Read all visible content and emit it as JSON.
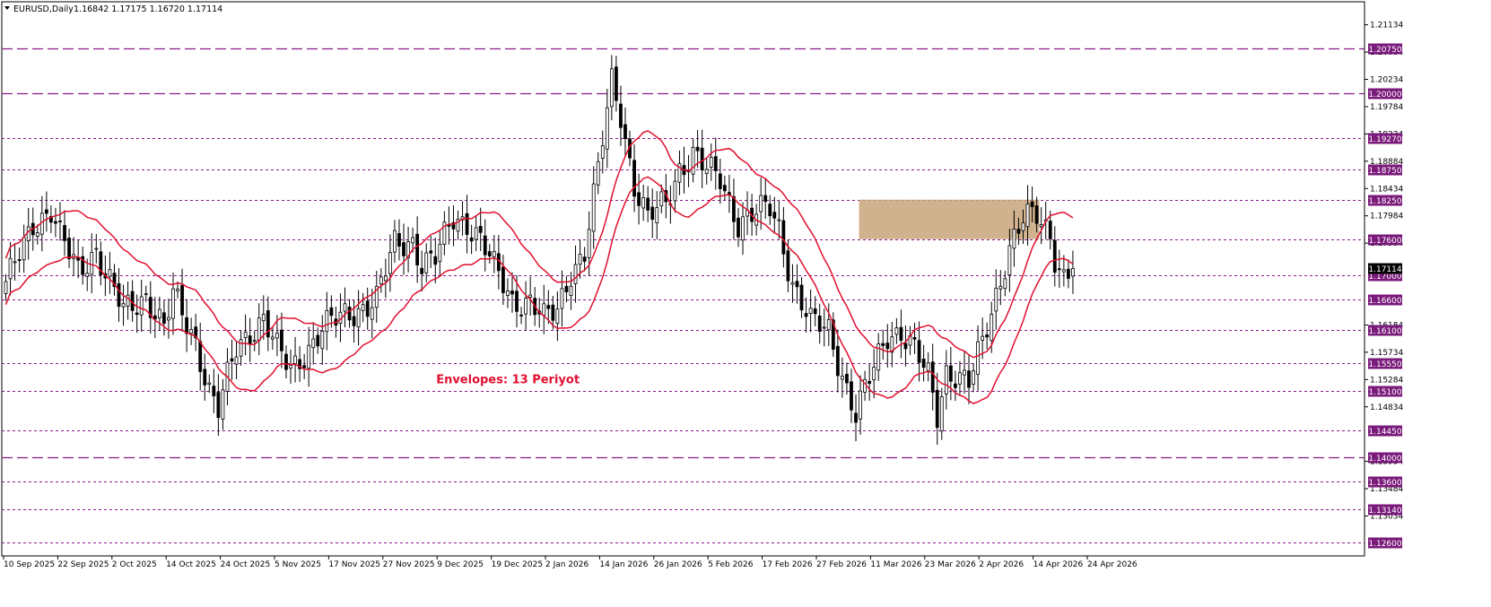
{
  "header": {
    "symbol": "EURUSD,Daily",
    "ohlc": "1.16842 1.17175 1.16720 1.17114"
  },
  "colors": {
    "background": "#ffffff",
    "candle_bull": "#ffffff",
    "candle_bear": "#000000",
    "candle_outline": "#000000",
    "envelope": "#e01030",
    "level_line": "#8a1a8a",
    "level_label_bg": "#7a1a7a",
    "zone_fill": "#c8a57a",
    "annotation": "#e01030",
    "price_label_bg": "#000000"
  },
  "chart_data": {
    "type": "candlestick",
    "symbol": "EURUSD",
    "timeframe": "Daily",
    "ylim": [
      1.1245,
      1.2145
    ],
    "y_ticks": [
      "1.21134",
      "1.20684",
      "1.20234",
      "1.19784",
      "1.19334",
      "1.18884",
      "1.18434",
      "1.17984",
      "1.17534",
      "1.16184",
      "1.15734",
      "1.15284",
      "1.14834",
      "1.13934",
      "1.13484",
      "1.13034"
    ],
    "x_tick_labels": [
      "10 Sep 2025",
      "22 Sep 2025",
      "2 Oct 2025",
      "14 Oct 2025",
      "24 Oct 2025",
      "5 Nov 2025",
      "17 Nov 2025",
      "27 Nov 2025",
      "9 Dec 2025",
      "19 Dec 2025",
      "2 Jan 2026",
      "14 Jan 2026",
      "26 Jan 2026",
      "5 Feb 2026",
      "17 Feb 2026",
      "27 Feb 2026",
      "11 Mar 2026",
      "23 Mar 2026",
      "2 Apr 2026",
      "14 Apr 2026",
      "24 Apr 2026"
    ],
    "levels": [
      {
        "label": "1.20750",
        "value": 1.2075,
        "style": "long-dash"
      },
      {
        "label": "1.20000",
        "value": 1.2,
        "style": "long-dash"
      },
      {
        "label": "1.19270",
        "value": 1.1927,
        "style": "dash"
      },
      {
        "label": "1.18750",
        "value": 1.1875,
        "style": "dash"
      },
      {
        "label": "1.18250",
        "value": 1.1825,
        "style": "dash"
      },
      {
        "label": "1.17600",
        "value": 1.176,
        "style": "dash"
      },
      {
        "label": "1.17000",
        "value": 1.17,
        "style": "dash"
      },
      {
        "label": "1.16600",
        "value": 1.166,
        "style": "dash"
      },
      {
        "label": "1.16100",
        "value": 1.161,
        "style": "dash"
      },
      {
        "label": "1.15550",
        "value": 1.1555,
        "style": "dash"
      },
      {
        "label": "1.15100",
        "value": 1.151,
        "style": "dash"
      },
      {
        "label": "1.14450",
        "value": 1.1445,
        "style": "dash"
      },
      {
        "label": "1.14000",
        "value": 1.14,
        "style": "long-dash"
      },
      {
        "label": "1.13600",
        "value": 1.136,
        "style": "dash"
      },
      {
        "label": "1.13140",
        "value": 1.1314,
        "style": "dash"
      },
      {
        "label": "1.12600",
        "value": 1.126,
        "style": "dash"
      }
    ],
    "current_price_label": "1.17114",
    "current_price": 1.17114,
    "zone": {
      "bar_from": 189,
      "bar_to": 213,
      "high": 1.1825,
      "low": 1.176
    },
    "annotation": {
      "text": "Envelopes: 13 Periyot",
      "bar": 103,
      "value": 1.1525
    },
    "envelope_period": 13,
    "envelope_shift": 0.0038,
    "key_closes": [
      [
        0,
        1.168
      ],
      [
        6,
        1.179
      ],
      [
        10,
        1.1805
      ],
      [
        12,
        1.176
      ],
      [
        16,
        1.171
      ],
      [
        20,
        1.1745
      ],
      [
        22,
        1.17
      ],
      [
        26,
        1.164
      ],
      [
        31,
        1.167
      ],
      [
        35,
        1.161
      ],
      [
        37,
        1.1665
      ],
      [
        42,
        1.1595
      ],
      [
        45,
        1.151
      ],
      [
        47,
        1.1475
      ],
      [
        51,
        1.158
      ],
      [
        54,
        1.161
      ],
      [
        57,
        1.163
      ],
      [
        60,
        1.1575
      ],
      [
        63,
        1.1545
      ],
      [
        65,
        1.1565
      ],
      [
        70,
        1.161
      ],
      [
        75,
        1.1635
      ],
      [
        79,
        1.165
      ],
      [
        82,
        1.166
      ],
      [
        86,
        1.175
      ],
      [
        90,
        1.176
      ],
      [
        92,
        1.172
      ],
      [
        95,
        1.1725
      ],
      [
        99,
        1.1795
      ],
      [
        102,
        1.179
      ],
      [
        105,
        1.176
      ],
      [
        108,
        1.171
      ],
      [
        112,
        1.166
      ],
      [
        116,
        1.166
      ],
      [
        119,
        1.1625
      ],
      [
        122,
        1.164
      ],
      [
        125,
        1.171
      ],
      [
        128,
        1.174
      ],
      [
        131,
        1.187
      ],
      [
        134,
        1.202
      ],
      [
        136,
        1.197
      ],
      [
        139,
        1.185
      ],
      [
        142,
        1.179
      ],
      [
        146,
        1.182
      ],
      [
        149,
        1.188
      ],
      [
        152,
        1.19
      ],
      [
        155,
        1.187
      ],
      [
        158,
        1.186
      ],
      [
        162,
        1.179
      ],
      [
        166,
        1.18
      ],
      [
        169,
        1.181
      ],
      [
        171,
        1.178
      ],
      [
        174,
        1.169
      ],
      [
        178,
        1.162
      ],
      [
        182,
        1.161
      ],
      [
        185,
        1.154
      ],
      [
        188,
        1.147
      ],
      [
        192,
        1.1545
      ],
      [
        195,
        1.1605
      ],
      [
        198,
        1.161
      ],
      [
        201,
        1.1575
      ],
      [
        204,
        1.153
      ],
      [
        206,
        1.147
      ],
      [
        208,
        1.1545
      ],
      [
        210,
        1.154
      ],
      [
        213,
        1.152
      ],
      [
        216,
        1.1585
      ],
      [
        219,
        1.167
      ],
      [
        222,
        1.175
      ],
      [
        225,
        1.179
      ],
      [
        228,
        1.1795
      ],
      [
        231,
        1.177
      ],
      [
        232,
        1.1735
      ],
      [
        234,
        1.17
      ],
      [
        236,
        1.1711
      ]
    ]
  }
}
